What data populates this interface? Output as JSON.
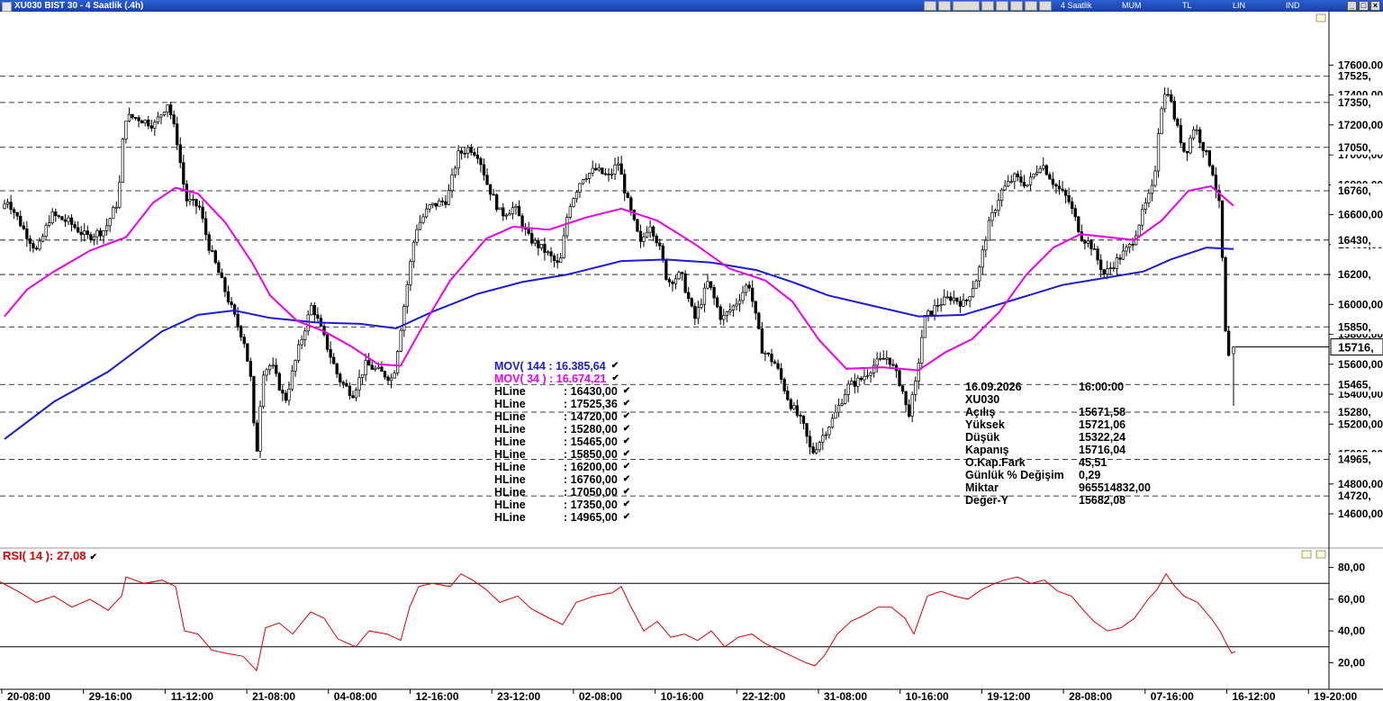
{
  "window": {
    "title": "XU030 BIST 30 - 4 Saatlik (.4h)",
    "toolbar_labels": [
      "4 Saatlik",
      "MUM",
      "TL",
      "LIN",
      "IND"
    ],
    "controls": [
      "minimize",
      "restore",
      "close"
    ]
  },
  "chart_data": {
    "type": "candlestick",
    "symbol": "XU030",
    "price_axis": {
      "range": [
        14450,
        17650
      ],
      "ticks": [
        "14600,00",
        "14800,00",
        "15000,00",
        "15200,00",
        "15400,00",
        "15600,00",
        "15800,00",
        "16000,00",
        "16200,00",
        "16400,00",
        "16600,00",
        "16800,00",
        "17000,00",
        "17200,00",
        "17400,00",
        "17600,00"
      ],
      "current_price": 15716,
      "current_label": "15716,"
    },
    "x_axis_labels": [
      "20-08:00",
      "29-16:00",
      "11-12:00",
      "21-08:00",
      "04-08:00",
      "12-16:00",
      "23-12:00",
      "02-08:00",
      "10-16:00",
      "22-12:00",
      "31-08:00",
      "10-16:00",
      "19-12:00",
      "28-08:00",
      "07-16:00",
      "16-12:00",
      "19-20:00"
    ],
    "hlines": [
      {
        "value": 17525.36,
        "label": "17525,"
      },
      {
        "value": 17350,
        "label": "17350,"
      },
      {
        "value": 17050,
        "label": "17050,"
      },
      {
        "value": 16760,
        "label": "16760,"
      },
      {
        "value": 16430,
        "label": "16430,"
      },
      {
        "value": 16200,
        "label": "16200,"
      },
      {
        "value": 15850,
        "label": "15850,"
      },
      {
        "value": 15465,
        "label": "15465,"
      },
      {
        "value": 15280,
        "label": "15280,"
      },
      {
        "value": 14965,
        "label": "14965,"
      },
      {
        "value": 14720,
        "label": "14720,"
      }
    ],
    "price_path": [
      [
        0,
        16600
      ],
      [
        12,
        16700
      ],
      [
        30,
        16500
      ],
      [
        45,
        16350
      ],
      [
        60,
        16600
      ],
      [
        80,
        16550
      ],
      [
        100,
        16450
      ],
      [
        120,
        16500
      ],
      [
        135,
        16700
      ],
      [
        142,
        17250
      ],
      [
        155,
        17250
      ],
      [
        175,
        17200
      ],
      [
        190,
        17350
      ],
      [
        200,
        17100
      ],
      [
        210,
        16700
      ],
      [
        225,
        16650
      ],
      [
        235,
        16400
      ],
      [
        250,
        16150
      ],
      [
        265,
        15900
      ],
      [
        275,
        15750
      ],
      [
        282,
        15500
      ],
      [
        288,
        14950
      ],
      [
        295,
        15550
      ],
      [
        305,
        15600
      ],
      [
        320,
        15350
      ],
      [
        335,
        15700
      ],
      [
        350,
        16000
      ],
      [
        365,
        15750
      ],
      [
        380,
        15500
      ],
      [
        395,
        15400
      ],
      [
        410,
        15600
      ],
      [
        425,
        15550
      ],
      [
        440,
        15500
      ],
      [
        450,
        15900
      ],
      [
        455,
        16100
      ],
      [
        465,
        16500
      ],
      [
        480,
        16650
      ],
      [
        500,
        16700
      ],
      [
        512,
        17000
      ],
      [
        525,
        17050
      ],
      [
        535,
        17000
      ],
      [
        545,
        16800
      ],
      [
        560,
        16600
      ],
      [
        575,
        16650
      ],
      [
        590,
        16450
      ],
      [
        610,
        16350
      ],
      [
        625,
        16250
      ],
      [
        635,
        16650
      ],
      [
        650,
        16850
      ],
      [
        665,
        16900
      ],
      [
        680,
        16850
      ],
      [
        690,
        16950
      ],
      [
        700,
        16700
      ],
      [
        715,
        16400
      ],
      [
        725,
        16550
      ],
      [
        735,
        16400
      ],
      [
        745,
        16150
      ],
      [
        760,
        16200
      ],
      [
        775,
        15900
      ],
      [
        790,
        16150
      ],
      [
        805,
        15900
      ],
      [
        820,
        16000
      ],
      [
        835,
        16150
      ],
      [
        850,
        15700
      ],
      [
        865,
        15600
      ],
      [
        880,
        15350
      ],
      [
        895,
        15200
      ],
      [
        905,
        15000
      ],
      [
        915,
        15100
      ],
      [
        930,
        15250
      ],
      [
        945,
        15450
      ],
      [
        960,
        15500
      ],
      [
        975,
        15600
      ],
      [
        990,
        15650
      ],
      [
        1005,
        15450
      ],
      [
        1012,
        15250
      ],
      [
        1020,
        15450
      ],
      [
        1030,
        15900
      ],
      [
        1045,
        16000
      ],
      [
        1060,
        16050
      ],
      [
        1075,
        16000
      ],
      [
        1090,
        16200
      ],
      [
        1100,
        16500
      ],
      [
        1115,
        16750
      ],
      [
        1130,
        16850
      ],
      [
        1145,
        16800
      ],
      [
        1160,
        16950
      ],
      [
        1175,
        16800
      ],
      [
        1190,
        16700
      ],
      [
        1205,
        16450
      ],
      [
        1215,
        16400
      ],
      [
        1230,
        16200
      ],
      [
        1245,
        16300
      ],
      [
        1260,
        16400
      ],
      [
        1275,
        16650
      ],
      [
        1285,
        16800
      ],
      [
        1292,
        17300
      ],
      [
        1300,
        17450
      ],
      [
        1310,
        17200
      ],
      [
        1320,
        17000
      ],
      [
        1330,
        17200
      ],
      [
        1340,
        17050
      ],
      [
        1350,
        16900
      ],
      [
        1358,
        16650
      ],
      [
        1362,
        16200
      ],
      [
        1366,
        15600
      ],
      [
        1372,
        15716
      ]
    ],
    "last_candle": {
      "date": "16.09.2026",
      "time": "16:00:00",
      "open": 15671.58,
      "high": 15721.06,
      "low": 15322.24,
      "close": 15716.04
    },
    "series": [
      {
        "name": "MOV( 144 : 16.385,64",
        "color": "#1a1adc",
        "points": [
          [
            5,
            15100
          ],
          [
            60,
            15350
          ],
          [
            120,
            15550
          ],
          [
            180,
            15820
          ],
          [
            220,
            15930
          ],
          [
            260,
            15960
          ],
          [
            300,
            15910
          ],
          [
            350,
            15880
          ],
          [
            400,
            15870
          ],
          [
            440,
            15840
          ],
          [
            480,
            15950
          ],
          [
            530,
            16070
          ],
          [
            580,
            16150
          ],
          [
            630,
            16200
          ],
          [
            690,
            16290
          ],
          [
            740,
            16300
          ],
          [
            790,
            16280
          ],
          [
            840,
            16230
          ],
          [
            880,
            16150
          ],
          [
            920,
            16060
          ],
          [
            970,
            15990
          ],
          [
            1020,
            15920
          ],
          [
            1070,
            15930
          ],
          [
            1120,
            16020
          ],
          [
            1180,
            16130
          ],
          [
            1230,
            16180
          ],
          [
            1270,
            16220
          ],
          [
            1300,
            16300
          ],
          [
            1340,
            16380
          ],
          [
            1370,
            16370
          ]
        ]
      },
      {
        "name": "MOV( 34 ) : 16.674,21",
        "color": "#ee00ee",
        "points": [
          [
            5,
            15920
          ],
          [
            30,
            16100
          ],
          [
            60,
            16220
          ],
          [
            100,
            16360
          ],
          [
            140,
            16450
          ],
          [
            170,
            16680
          ],
          [
            195,
            16780
          ],
          [
            220,
            16740
          ],
          [
            250,
            16550
          ],
          [
            280,
            16280
          ],
          [
            300,
            16060
          ],
          [
            330,
            15890
          ],
          [
            360,
            15820
          ],
          [
            390,
            15720
          ],
          [
            420,
            15600
          ],
          [
            445,
            15590
          ],
          [
            470,
            15860
          ],
          [
            500,
            16160
          ],
          [
            540,
            16440
          ],
          [
            570,
            16520
          ],
          [
            610,
            16500
          ],
          [
            650,
            16580
          ],
          [
            690,
            16640
          ],
          [
            730,
            16560
          ],
          [
            770,
            16410
          ],
          [
            810,
            16240
          ],
          [
            850,
            16160
          ],
          [
            880,
            16020
          ],
          [
            910,
            15760
          ],
          [
            940,
            15570
          ],
          [
            980,
            15580
          ],
          [
            1020,
            15560
          ],
          [
            1050,
            15680
          ],
          [
            1080,
            15770
          ],
          [
            1110,
            15950
          ],
          [
            1140,
            16200
          ],
          [
            1170,
            16380
          ],
          [
            1200,
            16470
          ],
          [
            1230,
            16450
          ],
          [
            1260,
            16430
          ],
          [
            1290,
            16560
          ],
          [
            1320,
            16760
          ],
          [
            1345,
            16790
          ],
          [
            1370,
            16660
          ]
        ]
      }
    ],
    "legend": [
      {
        "name": "MOV( 144 : 16.385,64",
        "color": "#1a1adc"
      },
      {
        "name": "MOV( 34 ) : 16.674,21",
        "color": "#ee00ee"
      },
      {
        "name": "HLine",
        "value": ": 16430,00"
      },
      {
        "name": "HLine",
        "value": ": 17525,36"
      },
      {
        "name": "HLine",
        "value": ": 14720,00"
      },
      {
        "name": "HLine",
        "value": ": 15280,00"
      },
      {
        "name": "HLine",
        "value": ": 15465,00"
      },
      {
        "name": "HLine",
        "value": ": 15850,00"
      },
      {
        "name": "HLine",
        "value": ": 16200,00"
      },
      {
        "name": "HLine",
        "value": ": 16760,00"
      },
      {
        "name": "HLine",
        "value": ": 17050,00"
      },
      {
        "name": "HLine",
        "value": ": 17350,00"
      },
      {
        "name": "HLine",
        "value": ": 14965,00"
      }
    ],
    "info_box": [
      {
        "k": "16.09.2026",
        "v": "16:00:00"
      },
      {
        "k": "XU030",
        "v": ""
      },
      {
        "k": "Açılış",
        "v": "15671,58"
      },
      {
        "k": "Yüksek",
        "v": "15721,06"
      },
      {
        "k": "Düşük",
        "v": "15322,24"
      },
      {
        "k": "Kapanış",
        "v": "15716,04"
      },
      {
        "k": "O.Kap.Fark",
        "v": "45,51"
      },
      {
        "k": "Günlük % Değişim",
        "v": "0,29"
      },
      {
        "k": "Miktar",
        "v": "965514832,00"
      },
      {
        "k": "Değer-Y",
        "v": "15682,08"
      }
    ],
    "rsi": {
      "label": "RSI( 14 ): 27,08",
      "color": "#e00000",
      "range": [
        10,
        90
      ],
      "ticks": [
        "20,00",
        "40,00",
        "60,00",
        "80,00"
      ],
      "levels": [
        70,
        30
      ],
      "points": [
        [
          0,
          71
        ],
        [
          20,
          65
        ],
        [
          40,
          58
        ],
        [
          60,
          62
        ],
        [
          80,
          55
        ],
        [
          100,
          60
        ],
        [
          120,
          53
        ],
        [
          135,
          62
        ],
        [
          140,
          74
        ],
        [
          160,
          70
        ],
        [
          180,
          72
        ],
        [
          195,
          68
        ],
        [
          205,
          40
        ],
        [
          220,
          38
        ],
        [
          235,
          28
        ],
        [
          250,
          26
        ],
        [
          270,
          24
        ],
        [
          285,
          15
        ],
        [
          295,
          42
        ],
        [
          310,
          45
        ],
        [
          325,
          38
        ],
        [
          345,
          52
        ],
        [
          360,
          48
        ],
        [
          375,
          35
        ],
        [
          395,
          30
        ],
        [
          410,
          40
        ],
        [
          430,
          38
        ],
        [
          445,
          34
        ],
        [
          455,
          55
        ],
        [
          465,
          68
        ],
        [
          480,
          70
        ],
        [
          500,
          68
        ],
        [
          512,
          76
        ],
        [
          525,
          72
        ],
        [
          540,
          66
        ],
        [
          555,
          58
        ],
        [
          575,
          62
        ],
        [
          590,
          54
        ],
        [
          610,
          48
        ],
        [
          625,
          44
        ],
        [
          640,
          58
        ],
        [
          660,
          62
        ],
        [
          680,
          64
        ],
        [
          690,
          68
        ],
        [
          700,
          56
        ],
        [
          715,
          40
        ],
        [
          730,
          46
        ],
        [
          745,
          36
        ],
        [
          760,
          38
        ],
        [
          775,
          34
        ],
        [
          790,
          40
        ],
        [
          805,
          30
        ],
        [
          820,
          36
        ],
        [
          835,
          38
        ],
        [
          850,
          32
        ],
        [
          865,
          28
        ],
        [
          880,
          24
        ],
        [
          895,
          20
        ],
        [
          905,
          18
        ],
        [
          915,
          24
        ],
        [
          930,
          38
        ],
        [
          945,
          46
        ],
        [
          960,
          50
        ],
        [
          975,
          55
        ],
        [
          990,
          55
        ],
        [
          1005,
          48
        ],
        [
          1015,
          38
        ],
        [
          1030,
          62
        ],
        [
          1045,
          65
        ],
        [
          1060,
          62
        ],
        [
          1075,
          60
        ],
        [
          1090,
          66
        ],
        [
          1105,
          70
        ],
        [
          1115,
          72
        ],
        [
          1130,
          74
        ],
        [
          1145,
          70
        ],
        [
          1160,
          72
        ],
        [
          1175,
          65
        ],
        [
          1190,
          62
        ],
        [
          1205,
          52
        ],
        [
          1215,
          46
        ],
        [
          1230,
          40
        ],
        [
          1245,
          42
        ],
        [
          1260,
          48
        ],
        [
          1275,
          60
        ],
        [
          1285,
          66
        ],
        [
          1295,
          76
        ],
        [
          1305,
          68
        ],
        [
          1315,
          62
        ],
        [
          1330,
          58
        ],
        [
          1345,
          48
        ],
        [
          1355,
          40
        ],
        [
          1362,
          32
        ],
        [
          1368,
          26
        ],
        [
          1372,
          27
        ]
      ]
    }
  }
}
